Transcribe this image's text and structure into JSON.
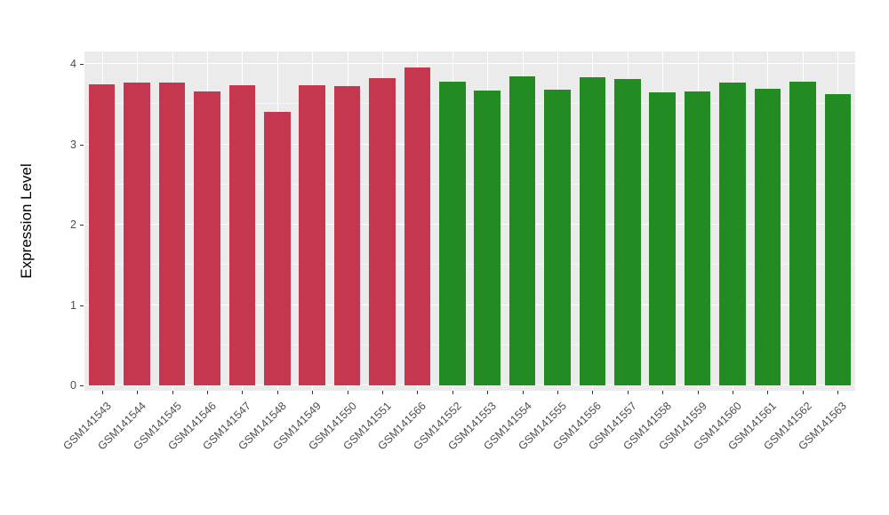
{
  "chart_data": {
    "type": "bar",
    "title": "",
    "xlabel": "",
    "ylabel": "Expression Level",
    "ylim": [
      0,
      4.15
    ],
    "yticks": [
      0,
      1,
      2,
      3,
      4
    ],
    "minor_gridlines": [
      0.5,
      1.5,
      2.5,
      3.5
    ],
    "grid": true,
    "legend": false,
    "categories": [
      "GSM141543",
      "GSM141544",
      "GSM141545",
      "GSM141546",
      "GSM141547",
      "GSM141548",
      "GSM141549",
      "GSM141550",
      "GSM141551",
      "GSM141566",
      "GSM141552",
      "GSM141553",
      "GSM141554",
      "GSM141555",
      "GSM141556",
      "GSM141557",
      "GSM141558",
      "GSM141559",
      "GSM141560",
      "GSM141561",
      "GSM141562",
      "GSM141563"
    ],
    "values": [
      3.75,
      3.77,
      3.77,
      3.66,
      3.73,
      3.4,
      3.74,
      3.72,
      3.82,
      3.96,
      3.78,
      3.67,
      3.84,
      3.68,
      3.83,
      3.81,
      3.65,
      3.66,
      3.77,
      3.69,
      3.78,
      3.62
    ],
    "group_split_index": 10,
    "colors": {
      "group1": "#C5364F",
      "group2": "#228B22",
      "panel_background": "#EBEBEB",
      "gridline": "#FFFFFF",
      "tick_text": "#4D4D4D",
      "axis_title": "#000000"
    }
  }
}
